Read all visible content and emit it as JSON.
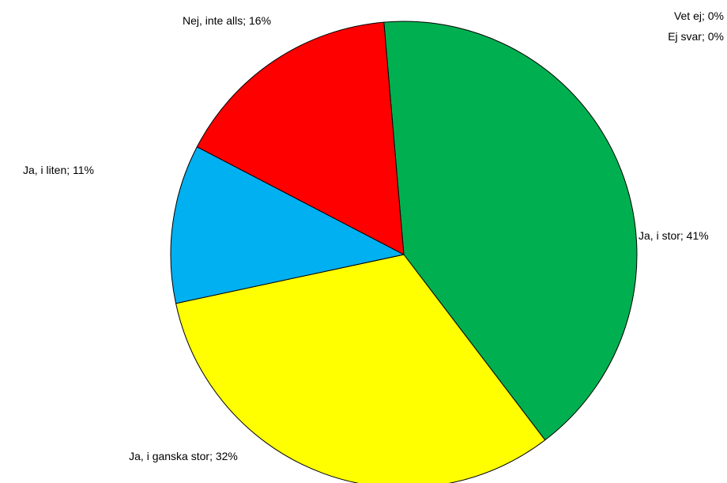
{
  "chart_data": {
    "type": "pie",
    "title": "",
    "label_separator": "; ",
    "start_angle_deg": -4.9,
    "slices": [
      {
        "name": "Ja, i stor",
        "value": 41,
        "display": "41%",
        "color": "#00B050"
      },
      {
        "name": "Ja, i ganska stor",
        "value": 32,
        "display": "32%",
        "color": "#FFFF00"
      },
      {
        "name": "Ja, i liten",
        "value": 11,
        "display": "11%",
        "color": "#00B0F0"
      },
      {
        "name": "Nej, inte alls",
        "value": 16,
        "display": "16%",
        "color": "#FF0000"
      },
      {
        "name": "Vet ej",
        "value": 0,
        "display": "0%",
        "color": "#7F7F7F"
      },
      {
        "name": "Ej svar",
        "value": 0,
        "display": "0%",
        "color": "#BFBFBF"
      }
    ],
    "legend": "none"
  }
}
